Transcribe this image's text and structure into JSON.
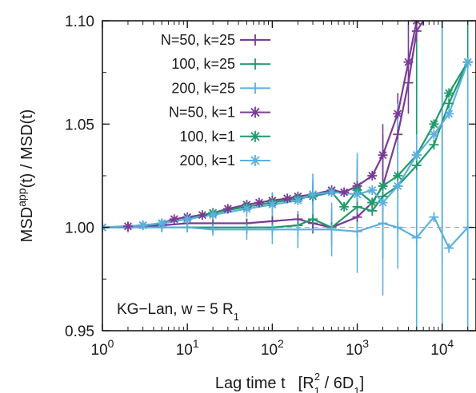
{
  "chart_data": {
    "type": "line",
    "xlabel": "Lag time t",
    "xlabel_unit": "[R",
    "xlabel_unit_sub1": "1",
    "xlabel_unit_sup": "2",
    "xlabel_unit_mid": " / 6D",
    "xlabel_unit_sub2": "1",
    "xlabel_unit_end": "]",
    "ylabel_main": "MSD",
    "ylabel_sup": "app",
    "ylabel_rest": "(t) / MSD(t)",
    "x_scale": "log",
    "xlim": [
      1,
      25000
    ],
    "ylim": [
      0.95,
      1.1
    ],
    "x_ticks": [
      {
        "base": "10",
        "exp": "0",
        "value": 1
      },
      {
        "base": "10",
        "exp": "1",
        "value": 10
      },
      {
        "base": "10",
        "exp": "2",
        "value": 100
      },
      {
        "base": "10",
        "exp": "3",
        "value": 1000
      },
      {
        "base": "10",
        "exp": "4",
        "value": 10000
      }
    ],
    "y_ticks": [
      {
        "label": "0.95",
        "value": 0.95
      },
      {
        "label": "1.00",
        "value": 1.0
      },
      {
        "label": "1.05",
        "value": 1.05
      },
      {
        "label": "1.10",
        "value": 1.1
      }
    ],
    "reference_line": 1.0,
    "annotation": {
      "text": "KG−Lan, w = 5 R",
      "sub": "1"
    },
    "legend_position": "top-left",
    "colors": {
      "purple": "#7a3a96",
      "green": "#1f9a6b",
      "blue": "#5cb0df"
    },
    "series": [
      {
        "name": "N=50, k=25",
        "color": "#7a3a96",
        "marker": "plus",
        "points": [
          [
            1,
            1.0
          ],
          [
            2,
            1.0
          ],
          [
            5,
            1.001
          ],
          [
            10,
            1.002
          ],
          [
            20,
            1.002
          ],
          [
            50,
            1.002
          ],
          [
            100,
            1.003
          ],
          [
            200,
            1.004
          ],
          [
            300,
            1.002
          ],
          [
            500,
            1.0
          ],
          [
            1000,
            1.005
          ],
          [
            1500,
            1.012
          ],
          [
            2000,
            1.02
          ],
          [
            3000,
            1.045
          ],
          [
            4000,
            1.07
          ],
          [
            5000,
            1.095
          ],
          [
            6000,
            1.1
          ]
        ],
        "errors": [
          [
            1,
            0.0
          ],
          [
            2,
            0.0
          ],
          [
            5,
            0.0005
          ],
          [
            10,
            0.001
          ],
          [
            20,
            0.001
          ],
          [
            50,
            0.002
          ],
          [
            100,
            0.003
          ],
          [
            200,
            0.004
          ],
          [
            300,
            0.005
          ],
          [
            500,
            0.006
          ],
          [
            1000,
            0.008
          ],
          [
            2000,
            0.012
          ],
          [
            3000,
            0.02
          ],
          [
            5000,
            0.03
          ]
        ]
      },
      {
        "name": "100, k=25",
        "color": "#1f9a6b",
        "marker": "plus",
        "points": [
          [
            1,
            1.0
          ],
          [
            2,
            1.0
          ],
          [
            5,
            1.0
          ],
          [
            10,
            1.0
          ],
          [
            20,
            1.0
          ],
          [
            50,
            1.0
          ],
          [
            100,
            1.0
          ],
          [
            200,
            1.001
          ],
          [
            300,
            1.004
          ],
          [
            500,
            1.0
          ],
          [
            1000,
            1.01
          ],
          [
            1500,
            1.008
          ],
          [
            2000,
            1.015
          ],
          [
            3000,
            1.02
          ],
          [
            5000,
            1.03
          ],
          [
            8000,
            1.04
          ],
          [
            12000,
            1.06
          ],
          [
            20000,
            1.08
          ]
        ],
        "errors": [
          [
            1,
            0.0
          ],
          [
            5,
            0.0005
          ],
          [
            10,
            0.001
          ],
          [
            20,
            0.002
          ],
          [
            50,
            0.003
          ],
          [
            100,
            0.004
          ],
          [
            200,
            0.006
          ],
          [
            500,
            0.009
          ],
          [
            1000,
            0.015
          ],
          [
            2000,
            0.03
          ],
          [
            5000,
            0.06
          ],
          [
            10000,
            0.08
          ],
          [
            20000,
            0.09
          ]
        ]
      },
      {
        "name": "200, k=25",
        "color": "#5cb0df",
        "marker": "plus",
        "points": [
          [
            1,
            1.0
          ],
          [
            2,
            1.0
          ],
          [
            5,
            1.0
          ],
          [
            10,
            1.0
          ],
          [
            20,
            0.999
          ],
          [
            50,
            0.999
          ],
          [
            100,
            0.999
          ],
          [
            200,
            0.999
          ],
          [
            500,
            0.999
          ],
          [
            1000,
            0.998
          ],
          [
            2000,
            1.002
          ],
          [
            3000,
            1.0
          ],
          [
            5000,
            0.995
          ],
          [
            8000,
            1.005
          ],
          [
            12000,
            0.99
          ],
          [
            20000,
            1.0
          ]
        ],
        "errors": [
          [
            1,
            0.0
          ],
          [
            5,
            0.001
          ],
          [
            10,
            0.002
          ],
          [
            20,
            0.003
          ],
          [
            50,
            0.005
          ],
          [
            100,
            0.007
          ],
          [
            200,
            0.009
          ],
          [
            500,
            0.013
          ],
          [
            1000,
            0.02
          ],
          [
            2000,
            0.035
          ],
          [
            5000,
            0.05
          ],
          [
            10000,
            0.07
          ],
          [
            20000,
            0.08
          ]
        ]
      },
      {
        "name": "N=50, k=1",
        "color": "#7a3a96",
        "marker": "star",
        "points": [
          [
            1,
            1.0
          ],
          [
            2,
            1.0005
          ],
          [
            3,
            1.001
          ],
          [
            5,
            1.002
          ],
          [
            7,
            1.004
          ],
          [
            10,
            1.005
          ],
          [
            15,
            1.006
          ],
          [
            20,
            1.007
          ],
          [
            30,
            1.009
          ],
          [
            50,
            1.011
          ],
          [
            70,
            1.012
          ],
          [
            100,
            1.013
          ],
          [
            150,
            1.014
          ],
          [
            200,
            1.015
          ],
          [
            300,
            1.016
          ],
          [
            500,
            1.018
          ],
          [
            700,
            1.017
          ],
          [
            1000,
            1.02
          ],
          [
            1500,
            1.025
          ],
          [
            2000,
            1.035
          ],
          [
            3000,
            1.055
          ],
          [
            4000,
            1.08
          ],
          [
            5000,
            1.1
          ]
        ],
        "errors": [
          [
            1,
            0.0
          ],
          [
            5,
            0.0005
          ],
          [
            10,
            0.001
          ],
          [
            30,
            0.002
          ],
          [
            100,
            0.003
          ],
          [
            300,
            0.005
          ],
          [
            1000,
            0.008
          ],
          [
            2000,
            0.015
          ],
          [
            4000,
            0.025
          ]
        ]
      },
      {
        "name": "100, k=1",
        "color": "#1f9a6b",
        "marker": "star",
        "points": [
          [
            1,
            1.0
          ],
          [
            3,
            1.001
          ],
          [
            5,
            1.002
          ],
          [
            10,
            1.004
          ],
          [
            20,
            1.007
          ],
          [
            50,
            1.01
          ],
          [
            100,
            1.012
          ],
          [
            200,
            1.014
          ],
          [
            300,
            1.015
          ],
          [
            500,
            1.017
          ],
          [
            700,
            1.01
          ],
          [
            1000,
            1.018
          ],
          [
            1500,
            1.012
          ],
          [
            2000,
            1.02
          ],
          [
            3000,
            1.025
          ],
          [
            5000,
            1.035
          ],
          [
            8000,
            1.05
          ],
          [
            12000,
            1.065
          ],
          [
            20000,
            1.08
          ]
        ],
        "errors": [
          [
            1,
            0.0
          ],
          [
            10,
            0.001
          ],
          [
            50,
            0.003
          ],
          [
            100,
            0.005
          ],
          [
            300,
            0.008
          ],
          [
            1000,
            0.015
          ],
          [
            3000,
            0.03
          ],
          [
            10000,
            0.06
          ]
        ]
      },
      {
        "name": "200, k=1",
        "color": "#5cb0df",
        "marker": "star",
        "points": [
          [
            1,
            1.0
          ],
          [
            3,
            1.001
          ],
          [
            5,
            1.002
          ],
          [
            10,
            1.004
          ],
          [
            20,
            1.006
          ],
          [
            50,
            1.009
          ],
          [
            100,
            1.011
          ],
          [
            200,
            1.013
          ],
          [
            300,
            1.016
          ],
          [
            500,
            1.017
          ],
          [
            1000,
            1.016
          ],
          [
            1500,
            1.018
          ],
          [
            2000,
            1.012
          ],
          [
            3000,
            1.02
          ],
          [
            5000,
            1.035
          ],
          [
            8000,
            1.045
          ],
          [
            12000,
            1.055
          ],
          [
            20000,
            1.08
          ]
        ],
        "errors": [
          [
            1,
            0.0
          ],
          [
            10,
            0.001
          ],
          [
            50,
            0.004
          ],
          [
            100,
            0.006
          ],
          [
            300,
            0.01
          ],
          [
            1000,
            0.02
          ],
          [
            3000,
            0.04
          ],
          [
            10000,
            0.07
          ]
        ]
      }
    ]
  }
}
